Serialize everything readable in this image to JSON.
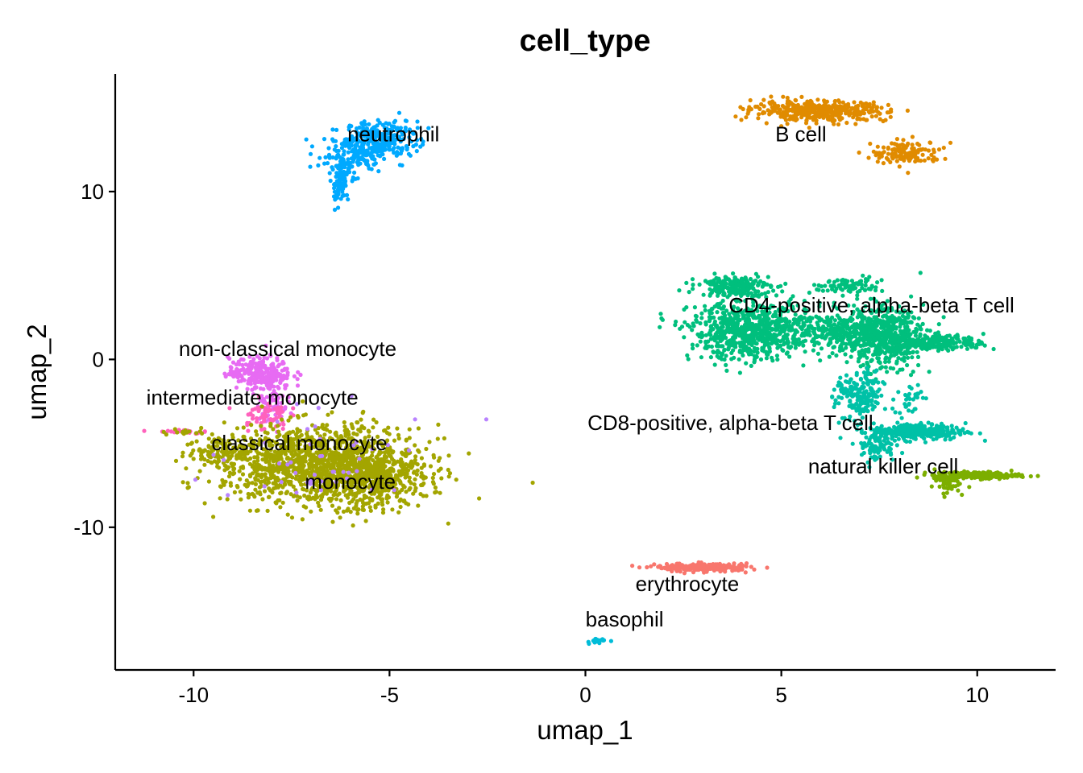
{
  "chart_data": {
    "type": "scatter",
    "title": "cell_type",
    "xlabel": "umap_1",
    "ylabel": "umap_2",
    "xlim": [
      -12,
      12
    ],
    "ylim": [
      -18.5,
      17
    ],
    "x_ticks": [
      -10,
      -5,
      0,
      5,
      10
    ],
    "x_tick_labels": [
      "-10",
      "-5",
      "0",
      "5",
      "10"
    ],
    "y_ticks": [
      -10,
      0,
      10
    ],
    "y_tick_labels": [
      "-10",
      "0",
      "10"
    ],
    "grid": false,
    "legend": "none",
    "series": [
      {
        "name": "neutrophil",
        "color": "#00A9FF",
        "label_at": [
          -4.9,
          13.0
        ],
        "clusters": [
          {
            "x": -5.2,
            "y": 13.2,
            "sx": 0.45,
            "sy": 0.5,
            "n": 240
          },
          {
            "x": -5.9,
            "y": 12.2,
            "sx": 0.45,
            "sy": 0.55,
            "n": 170
          },
          {
            "x": -6.25,
            "y": 10.5,
            "sx": 0.12,
            "sy": 0.65,
            "n": 90
          }
        ]
      },
      {
        "name": "B cell",
        "color": "#E08B00",
        "label_at": [
          5.5,
          13.0
        ],
        "clusters": [
          {
            "x": 6.0,
            "y": 14.8,
            "sx": 0.85,
            "sy": 0.3,
            "n": 420
          },
          {
            "x": 8.2,
            "y": 12.3,
            "sx": 0.45,
            "sy": 0.35,
            "n": 140
          }
        ]
      },
      {
        "name": "CD4-positive, alpha-beta T cell",
        "color": "#00BF7D",
        "label_at": [
          7.3,
          2.8
        ],
        "clusters": [
          {
            "x": 4.2,
            "y": 1.7,
            "sx": 0.75,
            "sy": 0.85,
            "n": 700
          },
          {
            "x": 3.8,
            "y": 4.4,
            "sx": 0.45,
            "sy": 0.3,
            "n": 200
          },
          {
            "x": 6.5,
            "y": 1.8,
            "sx": 0.8,
            "sy": 0.6,
            "n": 300
          },
          {
            "x": 7.5,
            "y": 1.3,
            "sx": 0.55,
            "sy": 0.9,
            "n": 500
          },
          {
            "x": 9.0,
            "y": 1.0,
            "sx": 0.6,
            "sy": 0.22,
            "n": 250
          },
          {
            "x": 6.7,
            "y": 4.4,
            "sx": 0.45,
            "sy": 0.25,
            "n": 80
          }
        ]
      },
      {
        "name": "CD8-positive, alpha-beta T cell",
        "color": "#00C1A7",
        "label_at": [
          3.7,
          -4.2
        ],
        "clusters": [
          {
            "x": 7.0,
            "y": -2.2,
            "sx": 0.3,
            "sy": 0.7,
            "n": 180
          },
          {
            "x": 8.5,
            "y": -4.3,
            "sx": 0.6,
            "sy": 0.25,
            "n": 320
          },
          {
            "x": 7.4,
            "y": -5.2,
            "sx": 0.25,
            "sy": 0.45,
            "n": 80
          },
          {
            "x": 8.3,
            "y": -2.3,
            "sx": 0.15,
            "sy": 0.5,
            "n": 30
          }
        ]
      },
      {
        "name": "natural killer cell",
        "color": "#7CAE00",
        "label_at": [
          7.6,
          -6.8
        ],
        "clusters": [
          {
            "x": 10.0,
            "y": -6.9,
            "sx": 0.55,
            "sy": 0.1,
            "n": 220
          },
          {
            "x": 9.2,
            "y": -7.3,
            "sx": 0.18,
            "sy": 0.3,
            "n": 60
          }
        ]
      },
      {
        "name": "non-classical monocyte",
        "color": "#E76BF3",
        "label_at": [
          -7.6,
          0.2
        ],
        "clusters": [
          {
            "x": -8.3,
            "y": -0.8,
            "sx": 0.4,
            "sy": 0.45,
            "n": 240
          },
          {
            "x": -8.0,
            "y": -2.5,
            "sx": 0.2,
            "sy": 0.6,
            "n": 70
          }
        ]
      },
      {
        "name": "intermediate monocyte",
        "color": "#FF62BC",
        "label_at": [
          -8.5,
          -2.7
        ],
        "clusters": [
          {
            "x": -8.2,
            "y": -3.3,
            "sx": 0.3,
            "sy": 0.45,
            "n": 60
          },
          {
            "x": -10.3,
            "y": -4.3,
            "sx": 0.4,
            "sy": 0.08,
            "n": 20
          }
        ]
      },
      {
        "name": "classical monocyte",
        "color": "#A3A500",
        "label_at": [
          -7.3,
          -5.4
        ],
        "clusters": [
          {
            "x": -6.7,
            "y": -6.3,
            "sx": 1.25,
            "sy": 1.15,
            "n": 1400
          },
          {
            "x": -5.4,
            "y": -7.3,
            "sx": 0.6,
            "sy": 0.7,
            "n": 300
          },
          {
            "x": -9.3,
            "y": -5.5,
            "sx": 0.45,
            "sy": 0.5,
            "n": 100
          },
          {
            "x": -10.3,
            "y": -4.3,
            "sx": 0.3,
            "sy": 0.1,
            "n": 15
          }
        ]
      },
      {
        "name": "monocyte",
        "color": "#B983FF",
        "label_at": [
          -6.0,
          -7.7
        ],
        "clusters": [
          {
            "x": -6.5,
            "y": -6.0,
            "sx": 1.6,
            "sy": 1.4,
            "n": 45
          }
        ]
      },
      {
        "name": "erythrocyte",
        "color": "#F8766D",
        "label_at": [
          2.6,
          -13.8
        ],
        "clusters": [
          {
            "x": 3.0,
            "y": -12.4,
            "sx": 0.6,
            "sy": 0.12,
            "n": 220
          }
        ]
      },
      {
        "name": "basophil",
        "color": "#00BCD8",
        "label_at": [
          1.0,
          -15.9
        ],
        "clusters": [
          {
            "x": 0.3,
            "y": -16.8,
            "sx": 0.1,
            "sy": 0.07,
            "n": 25
          }
        ]
      }
    ]
  }
}
